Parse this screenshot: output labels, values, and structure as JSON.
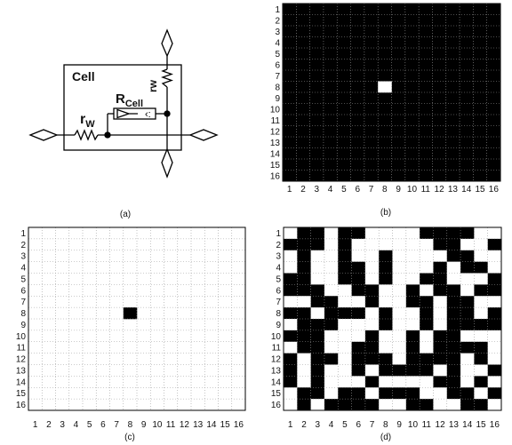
{
  "captions": {
    "a": "(a)",
    "b": "(b)",
    "c": "(c)",
    "d": "(d)"
  },
  "circuit": {
    "cell_label": "Cell",
    "r_cell_main": "R",
    "r_cell_sub": "Cell",
    "r_w_main": "r",
    "r_w_sub": "W",
    "r_w_vertical": "rw"
  },
  "colors": {
    "on": "#000000",
    "off": "#ffffff",
    "grid_dots": "#9a9a9a"
  },
  "chart_data": [
    {
      "type": "heatmap",
      "panel": "b",
      "rows": 16,
      "cols": 16,
      "row_labels": [
        "1",
        "2",
        "3",
        "4",
        "5",
        "6",
        "7",
        "8",
        "9",
        "10",
        "11",
        "12",
        "13",
        "14",
        "15",
        "16"
      ],
      "col_labels": [
        "1",
        "2",
        "3",
        "4",
        "5",
        "6",
        "7",
        "8",
        "9",
        "10",
        "11",
        "12",
        "13",
        "14",
        "15",
        "16"
      ],
      "background": "black",
      "highlight_cells": [
        [
          8,
          8
        ]
      ],
      "highlight_color": "white"
    },
    {
      "type": "heatmap",
      "panel": "c",
      "rows": 16,
      "cols": 16,
      "row_labels": [
        "1",
        "2",
        "3",
        "4",
        "5",
        "6",
        "7",
        "8",
        "9",
        "10",
        "11",
        "12",
        "13",
        "14",
        "15",
        "16"
      ],
      "col_labels": [
        "1",
        "2",
        "3",
        "4",
        "5",
        "6",
        "7",
        "8",
        "9",
        "10",
        "11",
        "12",
        "13",
        "14",
        "15",
        "16"
      ],
      "background": "white",
      "highlight_cells": [
        [
          8,
          8
        ]
      ],
      "highlight_color": "black"
    },
    {
      "type": "heatmap",
      "panel": "d",
      "rows": 16,
      "cols": 16,
      "row_labels": [
        "1",
        "2",
        "3",
        "4",
        "5",
        "6",
        "7",
        "8",
        "9",
        "10",
        "11",
        "12",
        "13",
        "14",
        "15",
        "16"
      ],
      "col_labels": [
        "1",
        "2",
        "3",
        "4",
        "5",
        "6",
        "7",
        "8",
        "9",
        "10",
        "11",
        "12",
        "13",
        "14",
        "15",
        "16"
      ],
      "legend": "1 = black, 0 = white",
      "matrix": [
        [
          0,
          1,
          1,
          0,
          1,
          1,
          0,
          0,
          0,
          0,
          1,
          1,
          1,
          1,
          0,
          0
        ],
        [
          1,
          1,
          1,
          0,
          1,
          0,
          0,
          0,
          0,
          0,
          0,
          1,
          1,
          0,
          0,
          1
        ],
        [
          0,
          1,
          0,
          0,
          1,
          0,
          0,
          1,
          0,
          0,
          0,
          0,
          1,
          1,
          0,
          0
        ],
        [
          0,
          1,
          0,
          0,
          1,
          1,
          0,
          1,
          0,
          0,
          0,
          1,
          0,
          1,
          1,
          0
        ],
        [
          1,
          1,
          0,
          0,
          1,
          1,
          0,
          1,
          0,
          0,
          1,
          1,
          0,
          0,
          0,
          1
        ],
        [
          1,
          1,
          1,
          0,
          0,
          1,
          1,
          0,
          0,
          1,
          0,
          1,
          1,
          0,
          1,
          1
        ],
        [
          0,
          0,
          1,
          1,
          0,
          0,
          1,
          0,
          0,
          1,
          1,
          0,
          1,
          1,
          0,
          0
        ],
        [
          1,
          1,
          0,
          1,
          1,
          1,
          0,
          1,
          0,
          0,
          1,
          0,
          1,
          1,
          0,
          1
        ],
        [
          0,
          1,
          1,
          1,
          0,
          0,
          0,
          1,
          0,
          0,
          1,
          0,
          1,
          1,
          1,
          1
        ],
        [
          1,
          1,
          1,
          0,
          0,
          0,
          1,
          0,
          0,
          1,
          0,
          1,
          1,
          0,
          0,
          0
        ],
        [
          0,
          1,
          1,
          0,
          0,
          1,
          1,
          0,
          0,
          1,
          0,
          1,
          1,
          1,
          1,
          0
        ],
        [
          1,
          0,
          1,
          1,
          0,
          1,
          1,
          1,
          0,
          1,
          1,
          1,
          1,
          0,
          1,
          0
        ],
        [
          1,
          0,
          1,
          0,
          0,
          1,
          0,
          1,
          1,
          1,
          1,
          0,
          1,
          0,
          0,
          1
        ],
        [
          1,
          0,
          1,
          0,
          0,
          0,
          1,
          0,
          0,
          0,
          0,
          1,
          1,
          0,
          1,
          0
        ],
        [
          0,
          1,
          1,
          0,
          1,
          1,
          0,
          1,
          1,
          1,
          0,
          0,
          1,
          1,
          0,
          1
        ],
        [
          0,
          1,
          0,
          1,
          1,
          1,
          1,
          0,
          0,
          1,
          1,
          0,
          0,
          1,
          1,
          0
        ]
      ]
    }
  ]
}
